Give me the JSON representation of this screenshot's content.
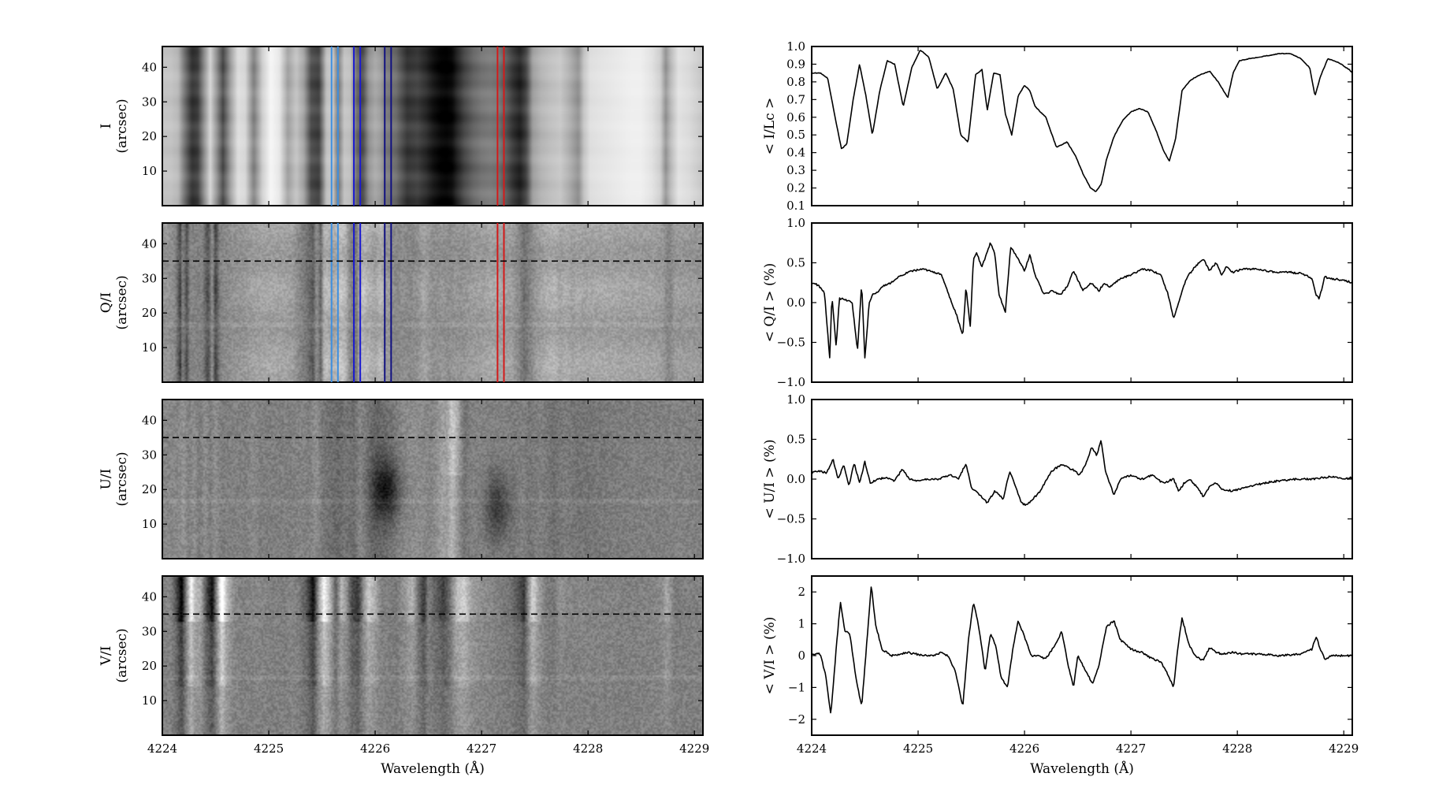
{
  "chart_data": {
    "type": "spectropolarimetry-figure",
    "x_axis": {
      "label": "Wavelength (Å)",
      "xlim": [
        4224.0,
        4229.08
      ],
      "ticks": [
        4224,
        4225,
        4226,
        4227,
        4228,
        4229
      ],
      "tick_labels": [
        "4224",
        "4225",
        "4226",
        "4227",
        "4228",
        "4229"
      ]
    },
    "image_panels": [
      {
        "id": "I",
        "ylabel": "I",
        "yunit": "(arcsec)",
        "yticks": [
          "10",
          "20",
          "30",
          "40"
        ],
        "ylim": [
          0,
          46
        ],
        "dashed_y": null,
        "colormap": "gray",
        "vmin": 0.15,
        "vmax": 1.0
      },
      {
        "id": "Q",
        "ylabel": "Q/I",
        "yunit": "(arcsec)",
        "yticks": [
          "10",
          "20",
          "30",
          "40"
        ],
        "ylim": [
          0,
          46
        ],
        "dashed_y": 35,
        "colormap": "gray",
        "vmin": -1.3,
        "vmax": 1.3
      },
      {
        "id": "U",
        "ylabel": "U/I",
        "yunit": "(arcsec)",
        "yticks": [
          "10",
          "20",
          "30",
          "40"
        ],
        "ylim": [
          0,
          46
        ],
        "dashed_y": 35,
        "colormap": "gray",
        "vmin": -1.0,
        "vmax": 1.0
      },
      {
        "id": "V",
        "ylabel": "V/I",
        "yunit": "(arcsec)",
        "yticks": [
          "10",
          "20",
          "30",
          "40"
        ],
        "ylim": [
          0,
          46
        ],
        "dashed_y": 35,
        "colormap": "gray",
        "vmin": -3.0,
        "vmax": 3.0
      }
    ],
    "marker_lines": [
      {
        "wavelength": 4225.59,
        "color": "#3d8fe0"
      },
      {
        "wavelength": 4225.65,
        "color": "#3d8fe0"
      },
      {
        "wavelength": 4225.8,
        "color": "#1a1ad0"
      },
      {
        "wavelength": 4225.86,
        "color": "#1a1ad0"
      },
      {
        "wavelength": 4226.09,
        "color": "#111180"
      },
      {
        "wavelength": 4226.15,
        "color": "#111180"
      },
      {
        "wavelength": 4227.15,
        "color": "#d41a1a"
      },
      {
        "wavelength": 4227.21,
        "color": "#d41a1a"
      }
    ],
    "marker_line_panels": [
      "I",
      "Q"
    ],
    "profile_panels": [
      {
        "id": "I",
        "ylabel": "< I/Lc >",
        "ylim": [
          0.1,
          1.0
        ],
        "yticks": [
          0.1,
          0.2,
          0.3,
          0.4,
          0.5,
          0.6,
          0.7,
          0.8,
          0.9,
          1.0
        ],
        "ytick_labels": [
          "0.1",
          "0.2",
          "0.3",
          "0.4",
          "0.5",
          "0.6",
          "0.7",
          "0.8",
          "0.9",
          "1.0"
        ],
        "x": [
          4224.0,
          4224.08,
          4224.15,
          4224.22,
          4224.28,
          4224.33,
          4224.39,
          4224.45,
          4224.51,
          4224.57,
          4224.64,
          4224.71,
          4224.78,
          4224.86,
          4224.94,
          4225.02,
          4225.1,
          4225.18,
          4225.26,
          4225.33,
          4225.4,
          4225.47,
          4225.54,
          4225.6,
          4225.65,
          4225.71,
          4225.77,
          4225.82,
          4225.88,
          4225.94,
          4226.0,
          4226.05,
          4226.1,
          4226.2,
          4226.3,
          4226.4,
          4226.48,
          4226.55,
          4226.62,
          4226.67,
          4226.72,
          4226.77,
          4226.84,
          4226.92,
          4227.0,
          4227.08,
          4227.16,
          4227.24,
          4227.3,
          4227.36,
          4227.42,
          4227.48,
          4227.56,
          4227.65,
          4227.74,
          4227.82,
          4227.87,
          4227.91,
          4227.96,
          4228.02,
          4228.1,
          4228.2,
          4228.3,
          4228.4,
          4228.5,
          4228.6,
          4228.68,
          4228.73,
          4228.78,
          4228.85,
          4228.95,
          4229.05,
          4229.08
        ],
        "y": [
          0.85,
          0.85,
          0.82,
          0.6,
          0.42,
          0.45,
          0.7,
          0.9,
          0.72,
          0.5,
          0.75,
          0.92,
          0.9,
          0.66,
          0.88,
          0.98,
          0.94,
          0.76,
          0.85,
          0.76,
          0.5,
          0.46,
          0.84,
          0.87,
          0.64,
          0.85,
          0.84,
          0.62,
          0.5,
          0.72,
          0.78,
          0.75,
          0.66,
          0.6,
          0.43,
          0.46,
          0.38,
          0.28,
          0.2,
          0.18,
          0.22,
          0.36,
          0.49,
          0.58,
          0.63,
          0.65,
          0.63,
          0.52,
          0.42,
          0.35,
          0.48,
          0.75,
          0.81,
          0.84,
          0.86,
          0.8,
          0.75,
          0.71,
          0.85,
          0.92,
          0.93,
          0.94,
          0.95,
          0.96,
          0.96,
          0.93,
          0.88,
          0.72,
          0.83,
          0.93,
          0.91,
          0.87,
          0.85
        ]
      },
      {
        "id": "Q",
        "ylabel": "< Q/I > (%)",
        "ylim": [
          -1.0,
          1.0
        ],
        "yticks": [
          -1.0,
          -0.5,
          0.0,
          0.5,
          1.0
        ],
        "ytick_labels": [
          "−1.0",
          "−0.5",
          "0.0",
          "0.5",
          "1.0"
        ],
        "x": [
          4224.0,
          4224.06,
          4224.12,
          4224.17,
          4224.19,
          4224.23,
          4224.26,
          4224.3,
          4224.34,
          4224.38,
          4224.43,
          4224.47,
          4224.5,
          4224.54,
          4224.57,
          4224.61,
          4224.66,
          4224.75,
          4224.85,
          4224.95,
          4225.05,
          4225.15,
          4225.22,
          4225.3,
          4225.36,
          4225.42,
          4225.45,
          4225.49,
          4225.52,
          4225.55,
          4225.6,
          4225.68,
          4225.72,
          4225.76,
          4225.82,
          4225.87,
          4225.92,
          4225.96,
          4226.0,
          4226.05,
          4226.1,
          4226.18,
          4226.26,
          4226.34,
          4226.4,
          4226.46,
          4226.55,
          4226.63,
          4226.7,
          4226.75,
          4226.8,
          4226.9,
          4227.0,
          4227.1,
          4227.2,
          4227.28,
          4227.35,
          4227.4,
          4227.46,
          4227.52,
          4227.6,
          4227.68,
          4227.74,
          4227.8,
          4227.85,
          4227.9,
          4227.96,
          4228.05,
          4228.2,
          4228.35,
          4228.5,
          4228.62,
          4228.7,
          4228.74,
          4228.77,
          4228.82,
          4228.9,
          4229.0,
          4229.08
        ],
        "y": [
          0.25,
          0.22,
          0.12,
          -0.7,
          0.08,
          -0.55,
          0.05,
          0.05,
          0.02,
          0.0,
          -0.6,
          0.25,
          -0.72,
          0.0,
          0.1,
          0.12,
          0.2,
          0.25,
          0.35,
          0.4,
          0.42,
          0.38,
          0.35,
          0.05,
          -0.15,
          -0.42,
          0.2,
          -0.3,
          0.55,
          0.62,
          0.45,
          0.75,
          0.62,
          0.1,
          -0.12,
          0.7,
          0.6,
          0.5,
          0.4,
          0.6,
          0.35,
          0.1,
          0.15,
          0.1,
          0.2,
          0.4,
          0.15,
          0.25,
          0.15,
          0.25,
          0.2,
          0.3,
          0.35,
          0.42,
          0.4,
          0.35,
          0.1,
          -0.2,
          0.05,
          0.3,
          0.45,
          0.55,
          0.4,
          0.5,
          0.35,
          0.45,
          0.38,
          0.42,
          0.42,
          0.38,
          0.38,
          0.36,
          0.3,
          0.1,
          0.05,
          0.32,
          0.3,
          0.28,
          0.25
        ]
      },
      {
        "id": "U",
        "ylabel": "< U/I > (%)",
        "ylim": [
          -1.0,
          1.0
        ],
        "yticks": [
          -1.0,
          -0.5,
          0.0,
          0.5,
          1.0
        ],
        "ytick_labels": [
          "−1.0",
          "−0.5",
          "0.0",
          "0.5",
          "1.0"
        ],
        "x": [
          4224.0,
          4224.08,
          4224.14,
          4224.2,
          4224.25,
          4224.3,
          4224.35,
          4224.4,
          4224.45,
          4224.5,
          4224.55,
          4224.62,
          4224.7,
          4224.78,
          4224.85,
          4224.92,
          4225.0,
          4225.1,
          4225.2,
          4225.3,
          4225.38,
          4225.45,
          4225.5,
          4225.58,
          4225.65,
          4225.72,
          4225.8,
          4225.86,
          4225.92,
          4225.97,
          4226.02,
          4226.08,
          4226.15,
          4226.25,
          4226.35,
          4226.45,
          4226.52,
          4226.58,
          4226.63,
          4226.68,
          4226.72,
          4226.76,
          4226.8,
          4226.84,
          4226.9,
          4227.0,
          4227.1,
          4227.2,
          4227.3,
          4227.4,
          4227.45,
          4227.5,
          4227.55,
          4227.62,
          4227.68,
          4227.74,
          4227.8,
          4227.85,
          4227.95,
          4228.1,
          4228.25,
          4228.4,
          4228.55,
          4228.7,
          4228.8,
          4228.9,
          4229.0,
          4229.08
        ],
        "y": [
          0.08,
          0.1,
          0.08,
          0.25,
          0.0,
          0.18,
          -0.08,
          0.2,
          -0.05,
          0.22,
          -0.05,
          0.0,
          0.02,
          -0.02,
          0.12,
          0.0,
          -0.02,
          0.0,
          0.0,
          0.05,
          0.0,
          0.2,
          -0.1,
          -0.2,
          -0.3,
          -0.15,
          -0.25,
          0.1,
          -0.1,
          -0.3,
          -0.33,
          -0.25,
          -0.15,
          0.1,
          0.18,
          0.12,
          0.05,
          0.2,
          0.4,
          0.3,
          0.5,
          0.1,
          -0.05,
          -0.2,
          0.0,
          0.05,
          0.0,
          0.05,
          -0.05,
          0.0,
          -0.15,
          -0.05,
          0.0,
          -0.1,
          -0.22,
          -0.1,
          -0.05,
          -0.12,
          -0.15,
          -0.1,
          -0.05,
          -0.02,
          0.0,
          0.0,
          0.02,
          0.03,
          0.0,
          0.02
        ]
      },
      {
        "id": "V",
        "ylabel": "< V/I > (%)",
        "ylim": [
          -2.5,
          2.5
        ],
        "yticks": [
          -2,
          -1,
          0,
          1,
          2
        ],
        "ytick_labels": [
          "−2",
          "−1",
          "0",
          "1",
          "2"
        ],
        "x": [
          4224.0,
          4224.08,
          4224.13,
          4224.18,
          4224.23,
          4224.27,
          4224.31,
          4224.36,
          4224.42,
          4224.47,
          4224.52,
          4224.56,
          4224.6,
          4224.66,
          4224.75,
          4224.9,
          4225.05,
          4225.15,
          4225.22,
          4225.28,
          4225.35,
          4225.42,
          4225.47,
          4225.52,
          4225.57,
          4225.63,
          4225.68,
          4225.73,
          4225.78,
          4225.84,
          4225.89,
          4225.94,
          4226.0,
          4226.06,
          4226.12,
          4226.2,
          4226.28,
          4226.35,
          4226.41,
          4226.46,
          4226.5,
          4226.58,
          4226.64,
          4226.7,
          4226.77,
          4226.84,
          4226.9,
          4227.0,
          4227.1,
          4227.2,
          4227.28,
          4227.35,
          4227.4,
          4227.44,
          4227.48,
          4227.54,
          4227.6,
          4227.68,
          4227.74,
          4227.8,
          4227.86,
          4227.95,
          4228.05,
          4228.2,
          4228.4,
          4228.6,
          4228.7,
          4228.74,
          4228.78,
          4228.82,
          4228.9,
          4229.0,
          4229.08
        ],
        "y": [
          0.05,
          0.05,
          -0.6,
          -1.85,
          0.2,
          1.7,
          0.8,
          0.65,
          -0.8,
          -1.6,
          0.5,
          2.2,
          1.0,
          0.2,
          0.0,
          0.1,
          0.0,
          0.0,
          0.1,
          0.0,
          -0.5,
          -1.6,
          0.4,
          1.7,
          0.9,
          -0.5,
          0.7,
          0.3,
          -0.7,
          -1.0,
          0.2,
          1.1,
          0.6,
          0.0,
          0.0,
          -0.1,
          0.3,
          0.75,
          -0.3,
          -1.0,
          0.0,
          -0.5,
          -0.9,
          -0.3,
          0.9,
          1.1,
          0.5,
          0.2,
          0.1,
          -0.1,
          -0.2,
          -0.6,
          -1.0,
          0.2,
          1.2,
          0.4,
          0.0,
          -0.15,
          0.25,
          0.1,
          0.05,
          0.1,
          0.05,
          0.05,
          0.0,
          0.05,
          0.2,
          0.6,
          0.2,
          -0.1,
          0.0,
          0.0,
          0.0
        ]
      }
    ]
  }
}
